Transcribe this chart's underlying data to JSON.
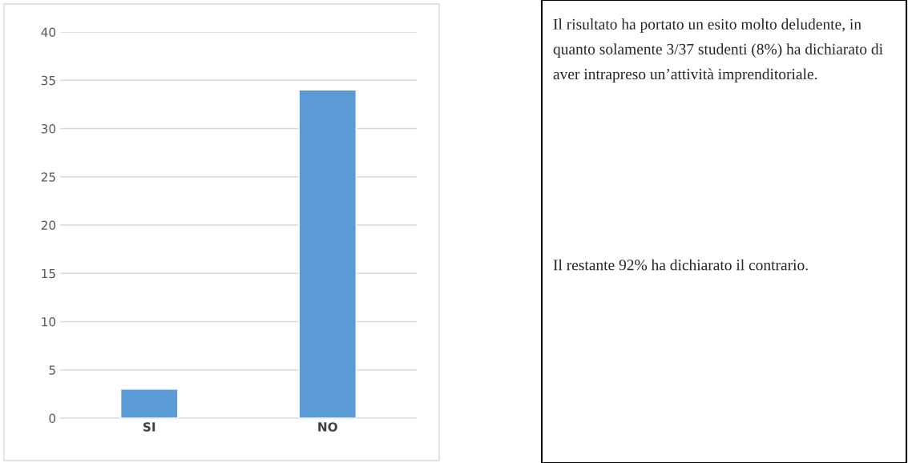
{
  "chart_data": {
    "type": "bar",
    "categories": [
      "SI",
      "NO"
    ],
    "values": [
      3,
      34
    ],
    "color": "#5b9bd5",
    "ylim": [
      0,
      40
    ],
    "yticks": [
      0,
      5,
      10,
      15,
      20,
      25,
      30,
      35,
      40
    ],
    "grid": "y",
    "annotations": [
      "Il risultato ha portato un esito molto deludente, in quanto solamente 3/37 studenti (8%) ha dichiarato di aver intrapreso un’attività imprenditoriale.",
      "Il restante 92% ha dichiarato il contrario."
    ]
  }
}
